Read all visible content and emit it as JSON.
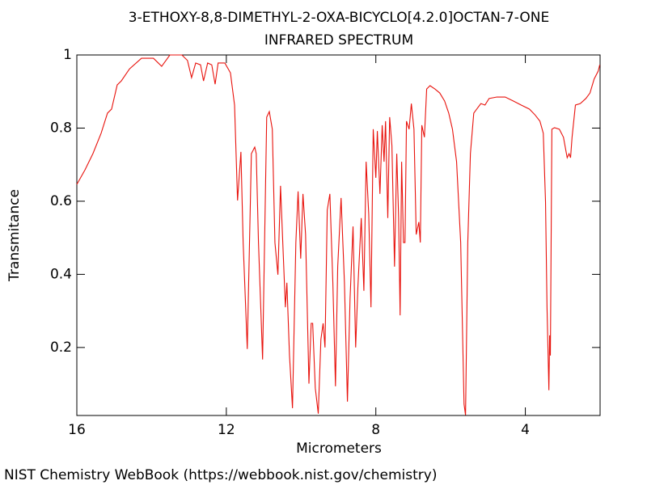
{
  "chart_data": {
    "type": "line",
    "title": "3-ETHOXY-8,8-DIMETHYL-2-OXA-BICYCLO[4.2.0]OCTAN-7-ONE",
    "subtitle": "INFRARED SPECTRUM",
    "x_label": "Micrometers",
    "y_label": "Transmitance",
    "source": "NIST Chemistry WebBook (https://webbook.nist.gov/chemistry)",
    "color": "#e8120c",
    "xlim": [
      16,
      2
    ],
    "ylim": [
      0.014,
      1
    ],
    "xticks": [
      16,
      12,
      8,
      4
    ],
    "yticks": [
      0.2,
      0.4,
      0.6,
      0.8,
      1
    ],
    "x": [
      16.0,
      15.78,
      15.57,
      15.35,
      15.18,
      15.07,
      14.92,
      14.81,
      14.59,
      14.27,
      13.95,
      13.73,
      13.51,
      13.19,
      13.04,
      12.93,
      12.82,
      12.69,
      12.61,
      12.5,
      12.39,
      12.3,
      12.22,
      12.04,
      11.89,
      11.78,
      11.7,
      11.61,
      11.55,
      11.44,
      11.33,
      11.24,
      11.2,
      11.14,
      11.03,
      10.92,
      10.85,
      10.77,
      10.7,
      10.62,
      10.55,
      10.49,
      10.42,
      10.38,
      10.31,
      10.23,
      10.14,
      10.08,
      10.01,
      9.95,
      9.88,
      9.79,
      9.73,
      9.69,
      9.62,
      9.54,
      9.47,
      9.41,
      9.36,
      9.3,
      9.23,
      9.15,
      9.08,
      9.02,
      8.93,
      8.84,
      8.76,
      8.69,
      8.61,
      8.54,
      8.48,
      8.39,
      8.32,
      8.26,
      8.19,
      8.13,
      8.07,
      8.0,
      7.96,
      7.89,
      7.83,
      7.78,
      7.74,
      7.68,
      7.63,
      7.57,
      7.5,
      7.44,
      7.39,
      7.35,
      7.31,
      7.26,
      7.22,
      7.18,
      7.11,
      7.05,
      6.98,
      6.92,
      6.85,
      6.81,
      6.77,
      6.7,
      6.64,
      6.55,
      6.42,
      6.29,
      6.16,
      6.05,
      5.95,
      5.84,
      5.73,
      5.64,
      5.6,
      5.54,
      5.47,
      5.38,
      5.3,
      5.19,
      5.08,
      4.97,
      4.76,
      4.54,
      4.32,
      4.11,
      3.89,
      3.74,
      3.61,
      3.52,
      3.46,
      3.42,
      3.37,
      3.35,
      3.33,
      3.29,
      3.22,
      3.09,
      2.98,
      2.92,
      2.88,
      2.83,
      2.79,
      2.75,
      2.66,
      2.53,
      2.38,
      2.27,
      2.16,
      2.05,
      2.01
    ],
    "values": [
      0.646,
      0.686,
      0.73,
      0.786,
      0.841,
      0.852,
      0.918,
      0.929,
      0.962,
      0.991,
      0.991,
      0.969,
      1.0,
      1.0,
      0.985,
      0.938,
      0.978,
      0.973,
      0.929,
      0.978,
      0.973,
      0.92,
      0.978,
      0.978,
      0.951,
      0.863,
      0.602,
      0.735,
      0.487,
      0.196,
      0.73,
      0.748,
      0.73,
      0.487,
      0.167,
      0.83,
      0.845,
      0.797,
      0.487,
      0.399,
      0.642,
      0.487,
      0.31,
      0.377,
      0.178,
      0.034,
      0.487,
      0.627,
      0.443,
      0.62,
      0.509,
      0.101,
      0.266,
      0.266,
      0.089,
      0.019,
      0.222,
      0.266,
      0.2,
      0.576,
      0.62,
      0.377,
      0.094,
      0.421,
      0.609,
      0.377,
      0.052,
      0.333,
      0.531,
      0.2,
      0.366,
      0.554,
      0.355,
      0.708,
      0.565,
      0.31,
      0.797,
      0.664,
      0.792,
      0.62,
      0.808,
      0.708,
      0.819,
      0.554,
      0.83,
      0.752,
      0.421,
      0.73,
      0.554,
      0.288,
      0.708,
      0.487,
      0.487,
      0.819,
      0.797,
      0.867,
      0.797,
      0.509,
      0.543,
      0.487,
      0.808,
      0.775,
      0.907,
      0.916,
      0.907,
      0.896,
      0.874,
      0.841,
      0.797,
      0.708,
      0.487,
      0.045,
      0.015,
      0.487,
      0.73,
      0.841,
      0.852,
      0.867,
      0.863,
      0.881,
      0.885,
      0.885,
      0.874,
      0.863,
      0.852,
      0.836,
      0.819,
      0.786,
      0.598,
      0.31,
      0.083,
      0.233,
      0.178,
      0.797,
      0.801,
      0.797,
      0.775,
      0.741,
      0.719,
      0.73,
      0.719,
      0.775,
      0.863,
      0.867,
      0.881,
      0.896,
      0.934,
      0.956,
      0.973
    ]
  }
}
